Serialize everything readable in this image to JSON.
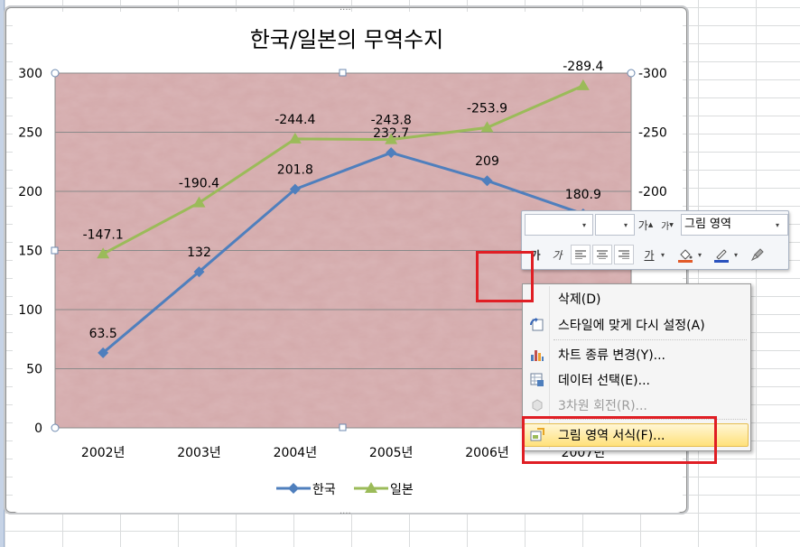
{
  "colors": {
    "plot_fill": "#d3a9aa",
    "korea": "#4f7fbd",
    "japan": "#9bbb59",
    "highlight": "#e01e24",
    "menu_hover": "#ffe17a"
  },
  "chart_data": {
    "type": "line",
    "title": "한국/일본의 무역수지",
    "categories": [
      "2002년",
      "2003년",
      "2004년",
      "2005년",
      "2006년",
      "2007년"
    ],
    "series": [
      {
        "name": "한국",
        "axis": "primary",
        "marker": "diamond",
        "values": [
          63.5,
          132,
          201.8,
          232.7,
          209,
          180.9
        ],
        "labels": [
          "63.5",
          "132",
          "201.8",
          "232.7",
          "209",
          "180.9"
        ]
      },
      {
        "name": "일본",
        "axis": "secondary",
        "marker": "triangle",
        "values": [
          -147.1,
          -190.4,
          -244.4,
          -243.8,
          -253.9,
          -289.4
        ],
        "labels": [
          "-147.1",
          "-190.4",
          "-244.4",
          "-243.8",
          "-253.9",
          "-289.4"
        ]
      }
    ],
    "primary_axis": {
      "ylim": [
        0,
        300
      ],
      "ticks": [
        "0",
        "50",
        "100",
        "150",
        "200",
        "250",
        "300"
      ]
    },
    "secondary_axis": {
      "ylim": [
        0,
        -300
      ],
      "ticks": [
        "-200",
        "-250",
        "-300"
      ]
    },
    "grid": true,
    "legend": "bottom"
  },
  "mini_toolbar": {
    "font_value": "",
    "size_value": "",
    "grow_label": "가",
    "shrink_label": "가",
    "element_select": "그림 영역",
    "bold_label": "가",
    "italic_label": "가",
    "underline_label": "가"
  },
  "context_menu": {
    "items": [
      {
        "label": "삭제(D)",
        "icon": "none",
        "state": "normal"
      },
      {
        "label": "스타일에 맞게 다시 설정(A)",
        "icon": "reset-style-icon",
        "state": "normal"
      },
      {
        "label": "차트 종류 변경(Y)...",
        "icon": "chart-type-icon",
        "state": "normal"
      },
      {
        "label": "데이터 선택(E)...",
        "icon": "select-data-icon",
        "state": "normal"
      },
      {
        "label": "3차원 회전(R)...",
        "icon": "3d-rotation-icon",
        "state": "disabled"
      },
      {
        "label": "그림 영역 서식(F)...",
        "icon": "format-plot-area-icon",
        "state": "hover"
      }
    ]
  }
}
